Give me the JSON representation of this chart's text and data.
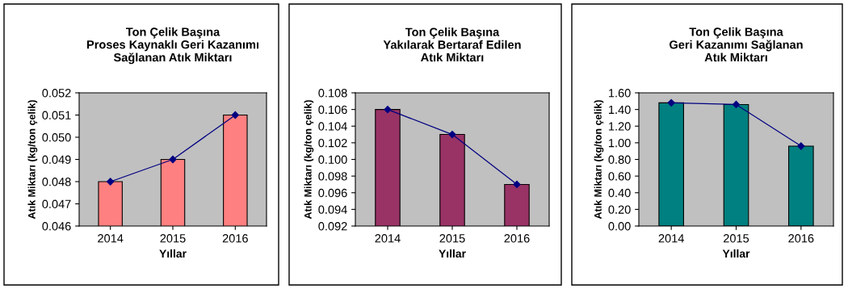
{
  "chart_data": [
    {
      "type": "bar",
      "title": "Ton Çelik Başına\nProses Kaynaklı Geri Kazanımı\nSağlanan Atık Miktarı",
      "xlabel": "Yıllar",
      "ylabel": "Atık Miktarı (kg/ton çelik)",
      "categories": [
        "2014",
        "2015",
        "2016"
      ],
      "series": [
        {
          "color": "#ff8080",
          "values": [
            0.048,
            0.049,
            0.051
          ]
        },
        {
          "type": "line",
          "color": "#000080",
          "marker": "diamond",
          "values": [
            0.048,
            0.049,
            0.051
          ]
        }
      ],
      "ylim": [
        0.046,
        0.052
      ],
      "yticks": [
        {
          "value": 0.046,
          "label": "0.046"
        },
        {
          "value": 0.047,
          "label": "0.047"
        },
        {
          "value": 0.048,
          "label": "0.048"
        },
        {
          "value": 0.049,
          "label": "0.049"
        },
        {
          "value": 0.05,
          "label": "0.050"
        },
        {
          "value": 0.051,
          "label": "0.051"
        },
        {
          "value": 0.052,
          "label": "0.052"
        }
      ],
      "grid": false
    },
    {
      "type": "bar",
      "title": "Ton Çelik Başına\nYakılarak Bertaraf Edilen\nAtık Miktarı",
      "xlabel": "Yıllar",
      "ylabel": "Atık Miktarı (kg/ton çelik)",
      "categories": [
        "2014",
        "2015",
        "2016"
      ],
      "series": [
        {
          "color": "#993366",
          "values": [
            0.106,
            0.103,
            0.097
          ]
        },
        {
          "type": "line",
          "color": "#000080",
          "marker": "diamond",
          "values": [
            0.106,
            0.103,
            0.097
          ]
        }
      ],
      "ylim": [
        0.092,
        0.108
      ],
      "yticks": [
        {
          "value": 0.092,
          "label": "0.092"
        },
        {
          "value": 0.094,
          "label": "0.094"
        },
        {
          "value": 0.096,
          "label": "0.096"
        },
        {
          "value": 0.098,
          "label": "0.098"
        },
        {
          "value": 0.1,
          "label": "0.100"
        },
        {
          "value": 0.102,
          "label": "0.102"
        },
        {
          "value": 0.104,
          "label": "0.104"
        },
        {
          "value": 0.106,
          "label": "0.106"
        },
        {
          "value": 0.108,
          "label": "0.108"
        }
      ],
      "grid": false
    },
    {
      "type": "bar",
      "title": "Ton Çelik Başına\nGeri Kazanımı Sağlanan\nAtık Miktarı",
      "xlabel": "Yıllar",
      "ylabel": "Atık Miktarı (kg/ton çelik)",
      "categories": [
        "2014",
        "2015",
        "2016"
      ],
      "series": [
        {
          "color": "#008080",
          "values": [
            1.48,
            1.46,
            0.96
          ]
        },
        {
          "type": "line",
          "color": "#000080",
          "marker": "diamond",
          "values": [
            1.48,
            1.46,
            0.96
          ]
        }
      ],
      "ylim": [
        0,
        1.6
      ],
      "yticks": [
        {
          "value": 0,
          "label": "0.00"
        },
        {
          "value": 0.2,
          "label": "0.20"
        },
        {
          "value": 0.4,
          "label": "0.40"
        },
        {
          "value": 0.6,
          "label": "0.60"
        },
        {
          "value": 0.8,
          "label": "0.80"
        },
        {
          "value": 1.0,
          "label": "1.00"
        },
        {
          "value": 1.2,
          "label": "1.20"
        },
        {
          "value": 1.4,
          "label": "1.40"
        },
        {
          "value": 1.6,
          "label": "1.60"
        }
      ],
      "grid": false
    }
  ]
}
